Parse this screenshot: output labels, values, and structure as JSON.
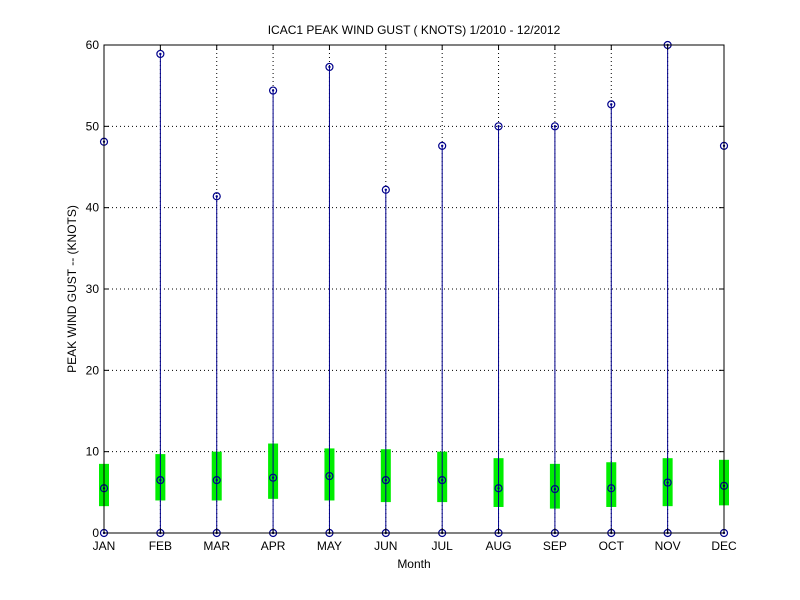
{
  "chart_data": {
    "type": "box",
    "title": "ICAC1  PEAK WIND GUST ( KNOTS) 1/2010 - 12/2012",
    "xlabel": "Month",
    "ylabel": "PEAK WIND GUST -- (KNOTS)",
    "ylim": [
      0,
      60
    ],
    "yticks": [
      0,
      10,
      20,
      30,
      40,
      50,
      60
    ],
    "grid": true,
    "categories": [
      "JAN",
      "FEB",
      "MAR",
      "APR",
      "MAY",
      "JUN",
      "JUL",
      "AUG",
      "SEP",
      "OCT",
      "NOV",
      "DEC"
    ],
    "series": [
      {
        "min": [
          0,
          0,
          0,
          0,
          0,
          0,
          0,
          0,
          0,
          0,
          0,
          0
        ],
        "q1": [
          3.3,
          4.0,
          4.0,
          4.2,
          4.0,
          3.8,
          3.8,
          3.2,
          3.0,
          3.2,
          3.3,
          3.4
        ],
        "median": [
          5.5,
          6.5,
          6.5,
          6.8,
          7.0,
          6.5,
          6.5,
          5.5,
          5.4,
          5.5,
          6.2,
          5.8
        ],
        "q3": [
          8.5,
          9.7,
          10.0,
          11.0,
          10.4,
          10.3,
          10.0,
          9.2,
          8.5,
          8.7,
          9.2,
          9.0
        ],
        "max": [
          48.1,
          58.9,
          41.4,
          54.4,
          57.3,
          42.2,
          47.6,
          50.0,
          50.0,
          52.7,
          60.0,
          47.6
        ]
      }
    ],
    "colors": {
      "whisker": "#00008b",
      "box": "#00ee00",
      "marker": "#00008b",
      "grid": "#000000"
    }
  }
}
